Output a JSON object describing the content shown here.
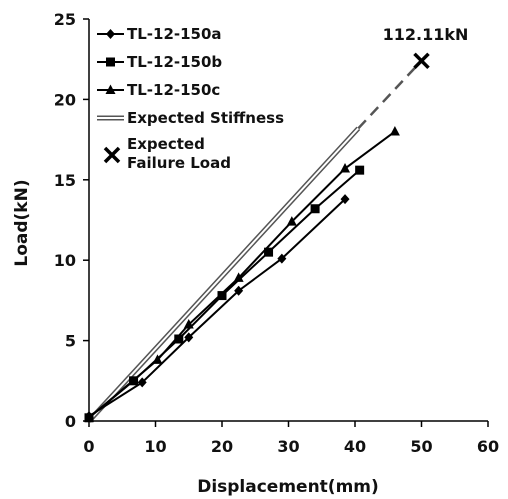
{
  "chart_data": {
    "type": "line",
    "xlabel": "Displacement(mm)",
    "ylabel": "Load(kN)",
    "xlim": [
      0,
      60
    ],
    "ylim": [
      0,
      25
    ],
    "xticks": [
      "0",
      "10",
      "20",
      "30",
      "40",
      "50",
      "60"
    ],
    "yticks": [
      "0",
      "5",
      "10",
      "15",
      "20",
      "25"
    ],
    "grid": false,
    "legend_position": "top-left",
    "series": [
      {
        "name": "TL-12-150a",
        "marker": "diamond",
        "color": "#000000",
        "x": [
          0,
          8,
          15,
          22.5,
          29,
          38.5
        ],
        "y": [
          0.3,
          2.4,
          5.2,
          8.1,
          10.1,
          13.8
        ]
      },
      {
        "name": "TL-12-150b",
        "marker": "square",
        "color": "#000000",
        "x": [
          0,
          6.7,
          13.5,
          20,
          27,
          34,
          40.7
        ],
        "y": [
          0.2,
          2.5,
          5.1,
          7.8,
          10.5,
          13.2,
          15.6
        ]
      },
      {
        "name": "TL-12-150c",
        "marker": "triangle",
        "color": "#000000",
        "x": [
          0,
          10.3,
          15,
          22.5,
          30.5,
          38.5,
          46
        ],
        "y": [
          0.2,
          3.8,
          6,
          8.9,
          12.4,
          15.7,
          18
        ]
      },
      {
        "name": "Expected Stiffness",
        "style": "double-line",
        "color": "#555555",
        "x": [
          0,
          40.5
        ],
        "y": [
          0,
          18.2
        ]
      }
    ],
    "expected_failure": {
      "name": "Expected Failure Load",
      "legend_lines": [
        "Expected",
        "Failure Load"
      ],
      "marker": "x",
      "x": 50,
      "y": 22.4,
      "label": "112.11kN",
      "dashed_from": {
        "x": 40.5,
        "y": 18.2
      }
    }
  }
}
